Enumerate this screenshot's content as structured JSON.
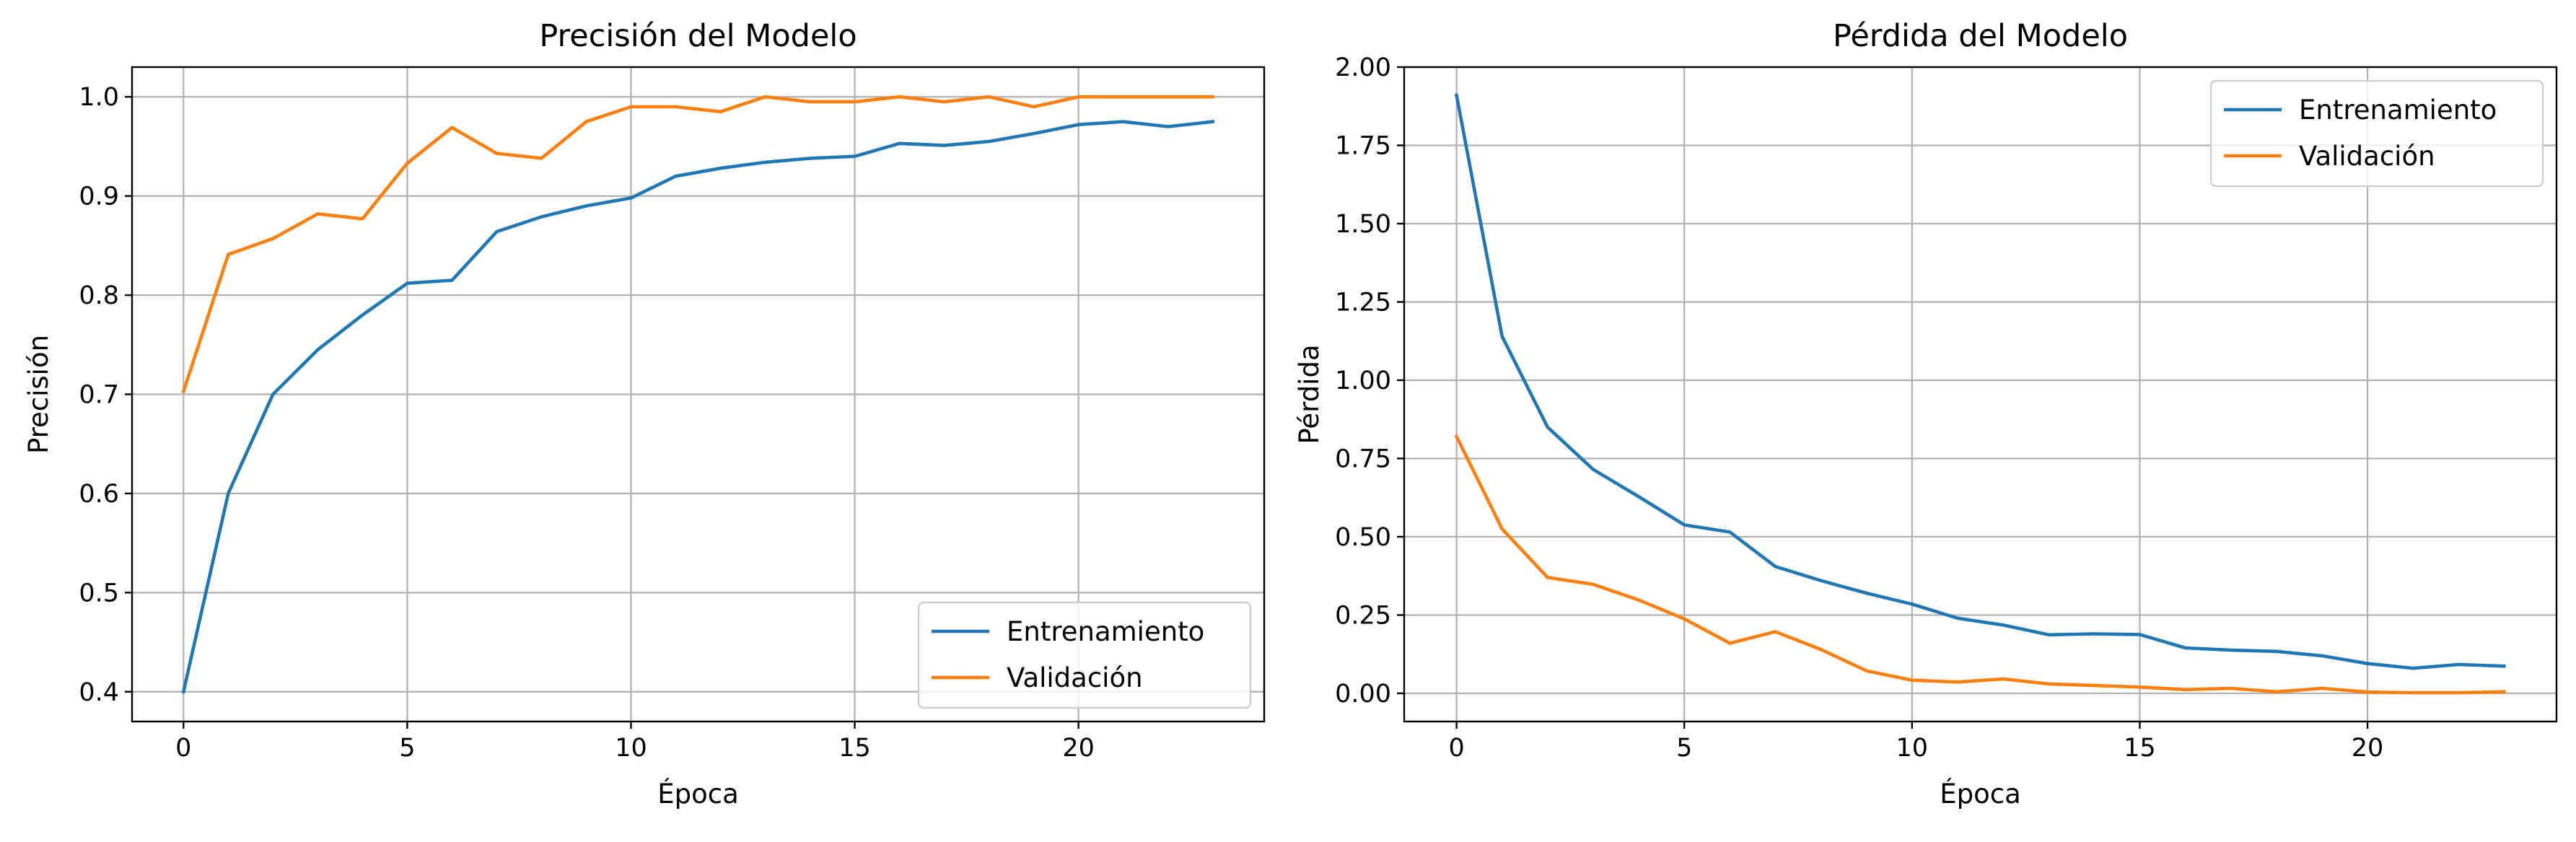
{
  "chart_data": [
    {
      "type": "line",
      "title": "Precisión del Modelo",
      "xlabel": "Época",
      "ylabel": "Precisión",
      "xlim": [
        -1.15,
        24.15
      ],
      "ylim": [
        0.37,
        1.03
      ],
      "xticks": [
        0,
        5,
        10,
        15,
        20
      ],
      "yticks": [
        0.4,
        0.5,
        0.6,
        0.7,
        0.8,
        0.9,
        1.0
      ],
      "ytick_labels": [
        "0.4",
        "0.5",
        "0.6",
        "0.7",
        "0.8",
        "0.9",
        "1.0"
      ],
      "grid": true,
      "legend_position": "lower-right",
      "x": [
        0,
        1,
        2,
        3,
        4,
        5,
        6,
        7,
        8,
        9,
        10,
        11,
        12,
        13,
        14,
        15,
        16,
        17,
        18,
        19,
        20,
        21,
        22,
        23
      ],
      "series": [
        {
          "name": "Entrenamiento",
          "color": "#1f77b4",
          "values": [
            0.4,
            0.6,
            0.7,
            0.745,
            0.78,
            0.812,
            0.815,
            0.864,
            0.879,
            0.89,
            0.898,
            0.92,
            0.928,
            0.934,
            0.938,
            0.94,
            0.953,
            0.951,
            0.955,
            0.963,
            0.972,
            0.975,
            0.97,
            0.975
          ]
        },
        {
          "name": "Validación",
          "color": "#ff7f0e",
          "values": [
            0.703,
            0.841,
            0.857,
            0.882,
            0.877,
            0.933,
            0.969,
            0.943,
            0.938,
            0.975,
            0.99,
            0.99,
            0.985,
            1.0,
            0.995,
            0.995,
            1.0,
            0.995,
            1.0,
            0.99,
            1.0,
            1.0,
            1.0,
            1.0
          ]
        }
      ]
    },
    {
      "type": "line",
      "title": "Pérdida del Modelo",
      "xlabel": "Época",
      "ylabel": "Pérdida",
      "xlim": [
        -1.15,
        24.15
      ],
      "ylim": [
        -0.09,
        2.0
      ],
      "xticks": [
        0,
        5,
        10,
        15,
        20
      ],
      "yticks": [
        0,
        0.25,
        0.5,
        0.75,
        1.0,
        1.25,
        1.5,
        1.75,
        2.0
      ],
      "ytick_labels": [
        "0.00",
        "0.25",
        "0.50",
        "0.75",
        "1.00",
        "1.25",
        "1.50",
        "1.75",
        "2.00"
      ],
      "grid": true,
      "legend_position": "upper-right",
      "x": [
        0,
        1,
        2,
        3,
        4,
        5,
        6,
        7,
        8,
        9,
        10,
        11,
        12,
        13,
        14,
        15,
        16,
        17,
        18,
        19,
        20,
        21,
        22,
        23
      ],
      "series": [
        {
          "name": "Entrenamiento",
          "color": "#1f77b4",
          "values": [
            1.91,
            1.14,
            0.85,
            0.715,
            0.628,
            0.538,
            0.515,
            0.405,
            0.36,
            0.32,
            0.285,
            0.24,
            0.218,
            0.187,
            0.19,
            0.188,
            0.145,
            0.138,
            0.134,
            0.12,
            0.095,
            0.08,
            0.092,
            0.087
          ]
        },
        {
          "name": "Validación",
          "color": "#ff7f0e",
          "values": [
            0.82,
            0.525,
            0.37,
            0.348,
            0.298,
            0.238,
            0.16,
            0.197,
            0.14,
            0.072,
            0.042,
            0.036,
            0.046,
            0.03,
            0.025,
            0.02,
            0.012,
            0.016,
            0.005,
            0.016,
            0.004,
            0.002,
            0.002,
            0.005
          ]
        }
      ]
    }
  ]
}
